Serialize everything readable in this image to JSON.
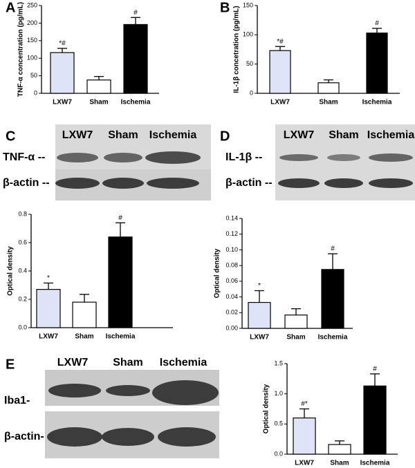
{
  "panels": [
    "A",
    "B",
    "C",
    "D",
    "E"
  ],
  "blots": [
    {
      "columns": [
        "LXW7",
        "Sham",
        "Ischemia"
      ],
      "rows": [
        "TNF-α --",
        "β-actin --"
      ]
    },
    {
      "columns": [
        "LXW7",
        "Sham",
        "Ischemia"
      ],
      "rows": [
        "IL-1β --",
        "β-actin --"
      ]
    },
    {
      "columns": [
        "LXW7",
        "Sham",
        "Ischemia"
      ],
      "rows": [
        "Iba1-",
        "β-actin-"
      ]
    }
  ],
  "chart_data": [
    {
      "type": "bar",
      "y_label": "TNF-α concentration (pg/mL)",
      "categories": [
        "LXW7",
        "Sham",
        "Ischemia"
      ],
      "values": [
        116,
        38,
        196
      ],
      "errors": [
        12,
        10,
        20
      ],
      "annotations": [
        "*#",
        null,
        "#"
      ],
      "colors": [
        "#dfe3f7",
        "#ffffff",
        "#000000"
      ],
      "ylim": [
        0,
        250
      ],
      "yticks": [
        0,
        50,
        100,
        150,
        200,
        250
      ]
    },
    {
      "type": "bar",
      "y_label": "IL-1β concetration (pg/mL)",
      "categories": [
        "LXW7",
        "Sham",
        "Ischemia"
      ],
      "values": [
        73,
        18,
        103
      ],
      "errors": [
        7,
        5,
        8
      ],
      "annotations": [
        "*#",
        null,
        "#"
      ],
      "colors": [
        "#dfe3f7",
        "#ffffff",
        "#000000"
      ],
      "ylim": [
        0,
        150
      ],
      "yticks": [
        0,
        50,
        100,
        150
      ]
    },
    {
      "type": "bar",
      "y_label": "Optical density",
      "categories": [
        "LXW7",
        "Sham",
        "Ischemia"
      ],
      "values": [
        0.27,
        0.18,
        0.64
      ],
      "errors": [
        0.045,
        0.055,
        0.1
      ],
      "annotations": [
        "*",
        null,
        "#"
      ],
      "colors": [
        "#dfe3f7",
        "#ffffff",
        "#000000"
      ],
      "ylim": [
        0,
        0.8
      ],
      "yticks": [
        {
          "value": 0,
          "label": "0.0"
        },
        0.2,
        0.4,
        0.6,
        0.8
      ]
    },
    {
      "type": "bar",
      "y_label": "Optical density",
      "categories": [
        "LXW7",
        "Sham",
        "Ischemia"
      ],
      "values": [
        0.033,
        0.017,
        0.075
      ],
      "errors": [
        0.015,
        0.008,
        0.02
      ],
      "annotations": [
        "*",
        null,
        "#"
      ],
      "colors": [
        "#dfe3f7",
        "#ffffff",
        "#000000"
      ],
      "ylim": [
        0,
        0.14
      ],
      "yticks": [
        {
          "value": 0,
          "label": "0.00"
        },
        0.02,
        0.04,
        0.06,
        0.08,
        {
          "value": 0.1,
          "label": "0.10"
        },
        0.12,
        0.14
      ]
    },
    {
      "type": "bar",
      "y_label": "Optical density",
      "categories": [
        "LXW7",
        "Sham",
        "Ischemia"
      ],
      "values": [
        0.6,
        0.16,
        1.13
      ],
      "errors": [
        0.15,
        0.06,
        0.2
      ],
      "annotations": [
        "#*",
        null,
        "#"
      ],
      "colors": [
        "#dfe3f7",
        "#ffffff",
        "#000000"
      ],
      "ylim": [
        0,
        1.5
      ],
      "yticks": [
        {
          "value": 0,
          "label": "0.0"
        },
        0.5,
        {
          "value": 1,
          "label": "1.0"
        },
        1.5
      ]
    }
  ]
}
